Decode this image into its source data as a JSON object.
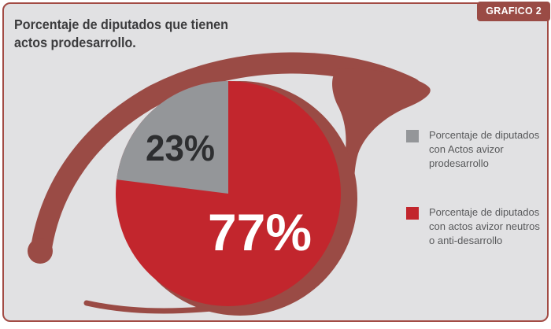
{
  "frame": {
    "badge": "GRAFICO 2"
  },
  "title": {
    "line1": "Porcentaje de diputados que tienen",
    "line2": "actos prodesarrollo."
  },
  "chart_data": {
    "type": "pie",
    "title": "Porcentaje de diputados que tienen actos prodesarrollo.",
    "slices": [
      {
        "label": "Porcentaje de diputados con Actos avizor prodesarrollo",
        "value": 23,
        "display": "23%",
        "color": "#949699",
        "label_color": "#2d2e30"
      },
      {
        "label": "Porcentaje de diputados con actos avizor neutros o anti-desarrollo",
        "value": 77,
        "display": "77%",
        "color": "#c2262d",
        "label_color": "#ffffff"
      }
    ],
    "legend_position": "right"
  },
  "legend": {
    "items": [
      {
        "lines": [
          "Porcentaje de diputados",
          "con Actos avizor",
          "prodesarrollo"
        ]
      },
      {
        "lines": [
          "Porcentaje de diputados",
          "con actos avizor neutros",
          "o anti-desarrollo"
        ]
      }
    ]
  },
  "colors": {
    "panel_bg": "#e1e1e3",
    "panel_border": "#a24b44",
    "eye": "#9a4b45",
    "title_text": "#3b3b3d",
    "legend_text": "#58595b",
    "badge_bg": "#9a4b45",
    "badge_text": "#ffffff"
  }
}
